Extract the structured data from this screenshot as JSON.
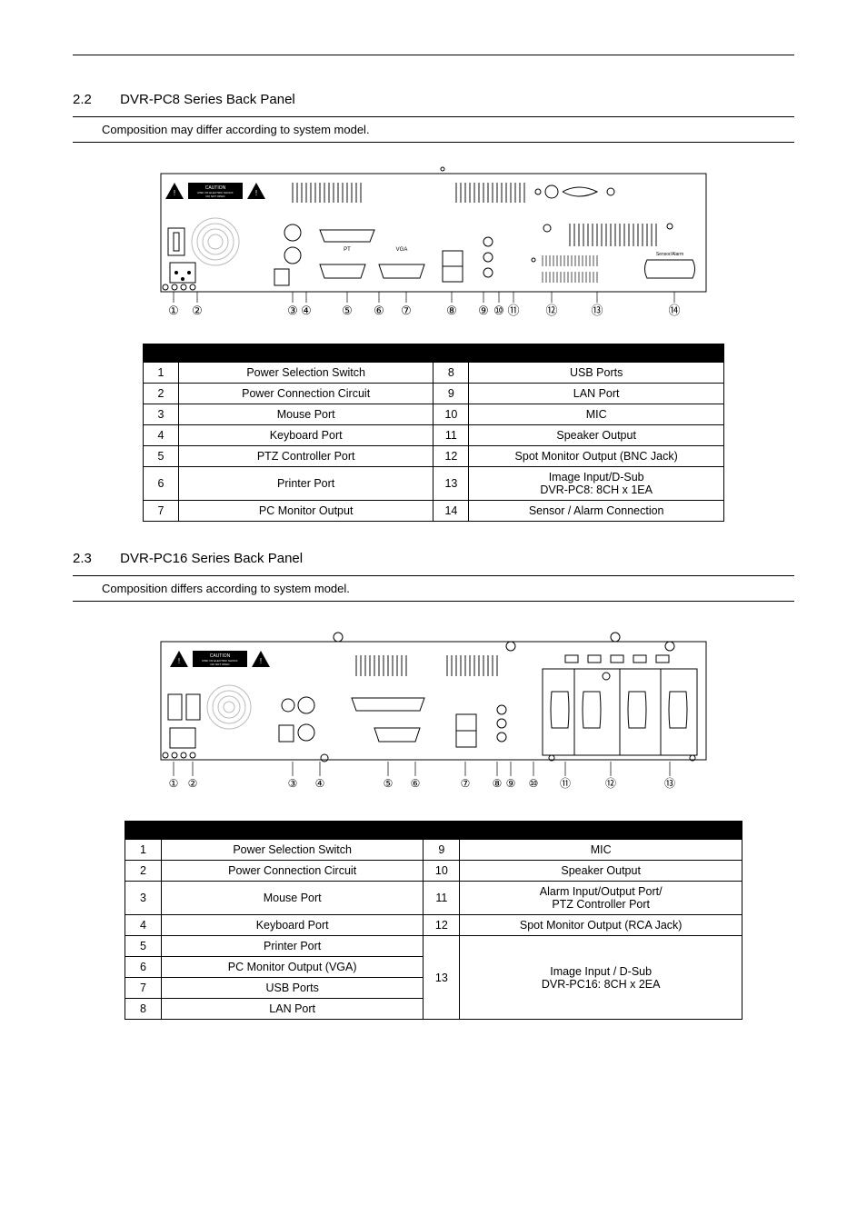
{
  "sections": {
    "pc8": {
      "number": "2.2",
      "title": "DVR-PC8 Series Back Panel",
      "note": "Composition may differ according to system model."
    },
    "pc16": {
      "number": "2.3",
      "title": "DVR-PC16 Series Back Panel",
      "note": "Composition differs according to system model."
    }
  },
  "pc8_table": {
    "rows": [
      {
        "i": "1",
        "name": "Power Selection Switch",
        "i2": "8",
        "name2": "USB Ports"
      },
      {
        "i": "2",
        "name": "Power Connection Circuit",
        "i2": "9",
        "name2": "LAN Port"
      },
      {
        "i": "3",
        "name": "Mouse Port",
        "i2": "10",
        "name2": "MIC"
      },
      {
        "i": "4",
        "name": "Keyboard Port",
        "i2": "11",
        "name2": "Speaker Output"
      },
      {
        "i": "5",
        "name": "PTZ Controller Port",
        "i2": "12",
        "name2": "Spot Monitor Output (BNC Jack)"
      },
      {
        "i": "6",
        "name": "Printer Port",
        "i2": "13",
        "name2": "Image Input/D-Sub\nDVR-PC8: 8CH x 1EA"
      },
      {
        "i": "7",
        "name": "PC Monitor Output",
        "i2": "14",
        "name2": "Sensor / Alarm Connection"
      }
    ]
  },
  "pc16_table": {
    "left": [
      {
        "i": "1",
        "name": "Power Selection Switch"
      },
      {
        "i": "2",
        "name": "Power Connection Circuit"
      },
      {
        "i": "3",
        "name": "Mouse Port"
      },
      {
        "i": "4",
        "name": "Keyboard Port"
      },
      {
        "i": "5",
        "name": "Printer Port"
      },
      {
        "i": "6",
        "name": "PC Monitor Output (VGA)"
      },
      {
        "i": "7",
        "name": "USB Ports"
      },
      {
        "i": "8",
        "name": "LAN Port"
      }
    ],
    "right": [
      {
        "i": "9",
        "name": "MIC"
      },
      {
        "i": "10",
        "name": "Speaker Output"
      },
      {
        "i": "11",
        "name": "Alarm Input/Output Port/\nPTZ Controller Port"
      },
      {
        "i": "12",
        "name": "Spot Monitor Output (RCA Jack)"
      }
    ],
    "right_merge": {
      "i": "13",
      "name": "Image Input / D-Sub\nDVR-PC16: 8CH x 2EA"
    }
  },
  "diagram": {
    "pc8_labels": [
      "①",
      "②",
      "③",
      "④",
      "⑤",
      "⑥",
      "⑦",
      "⑧",
      "⑨",
      "⑩",
      "⑪",
      "⑫",
      "⑬",
      "⑭"
    ],
    "pc16_labels": [
      "①",
      "②",
      "③",
      "④",
      "⑤",
      "⑥",
      "⑦",
      "⑧",
      "⑨",
      "⑩",
      "⑪",
      "⑫",
      "⑬"
    ],
    "caution_label": "CAUTION",
    "caution_sub1": "RISK OF ELECTRIC SHOCK",
    "caution_sub2": "DO NOT OPEN",
    "pt_label": "PT",
    "vga_label": "VGA",
    "sensor_label": "Sensor/Alarm",
    "colors": {
      "line": "#000000",
      "bg": "#ffffff",
      "caution_bg": "#000000",
      "caution_fg": "#ffffff",
      "grille": "#cccccc"
    }
  }
}
